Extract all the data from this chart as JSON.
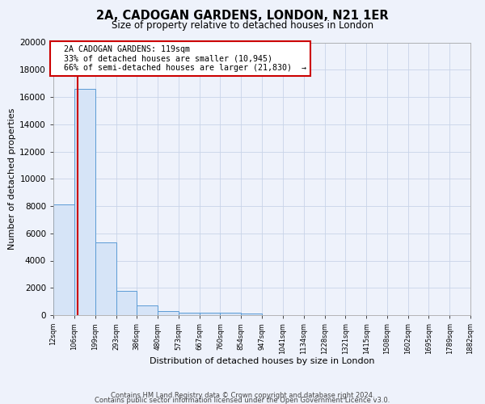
{
  "title_line1": "2A, CADOGAN GARDENS, LONDON, N21 1ER",
  "title_line2": "Size of property relative to detached houses in London",
  "xlabel": "Distribution of detached houses by size in London",
  "ylabel": "Number of detached properties",
  "footnote1": "Contains HM Land Registry data © Crown copyright and database right 2024.",
  "footnote2": "Contains public sector information licensed under the Open Government Licence v3.0.",
  "property_size": 119,
  "property_label": "2A CADOGAN GARDENS: 119sqm",
  "pct_smaller": 33,
  "pct_larger": 66,
  "n_smaller": 10945,
  "n_larger": 21830,
  "bar_color": "#d6e4f7",
  "bar_edge_color": "#5b9bd5",
  "redline_color": "#cc0000",
  "annotation_box_color": "#ffffff",
  "annotation_box_edge": "#cc0000",
  "grid_color": "#c8d4e8",
  "bg_color": "#eef2fb",
  "bin_edges": [
    12,
    106,
    199,
    293,
    386,
    480,
    573,
    667,
    760,
    854,
    947,
    1041,
    1134,
    1228,
    1321,
    1415,
    1508,
    1602,
    1695,
    1789,
    1882
  ],
  "bin_values": [
    8100,
    16600,
    5350,
    1800,
    700,
    300,
    200,
    170,
    150,
    130,
    0,
    0,
    0,
    0,
    0,
    0,
    0,
    0,
    0,
    0
  ],
  "ylim": [
    0,
    20000
  ],
  "yticks": [
    0,
    2000,
    4000,
    6000,
    8000,
    10000,
    12000,
    14000,
    16000,
    18000,
    20000
  ],
  "xtick_labels": [
    "12sqm",
    "106sqm",
    "199sqm",
    "293sqm",
    "386sqm",
    "480sqm",
    "573sqm",
    "667sqm",
    "760sqm",
    "854sqm",
    "947sqm",
    "1041sqm",
    "1134sqm",
    "1228sqm",
    "1321sqm",
    "1415sqm",
    "1508sqm",
    "1602sqm",
    "1695sqm",
    "1789sqm",
    "1882sqm"
  ]
}
